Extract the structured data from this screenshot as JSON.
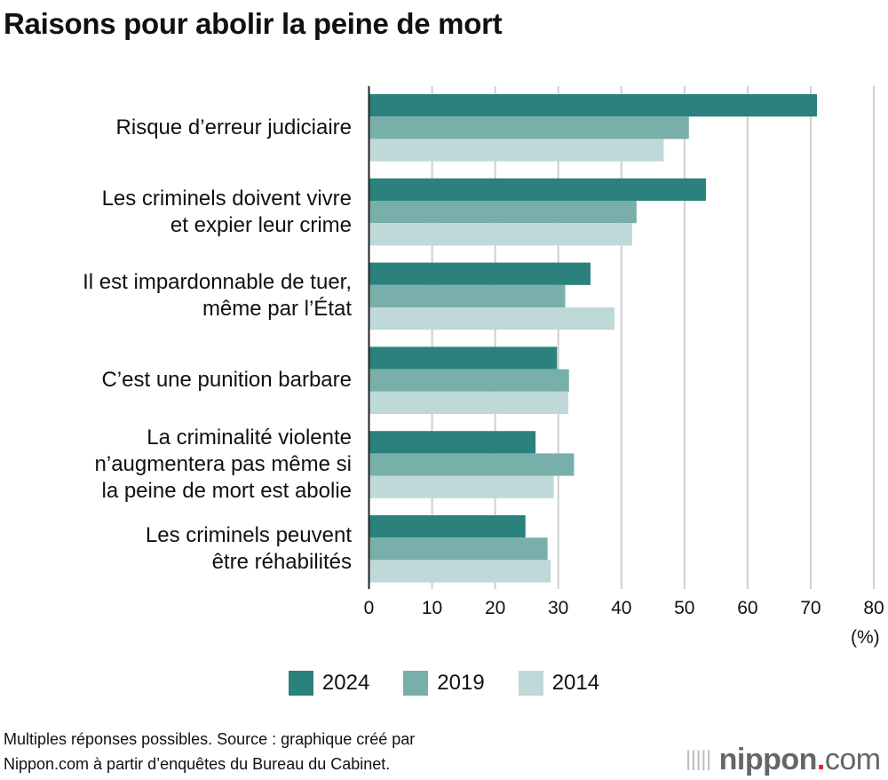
{
  "title": "Raisons pour abolir la peine de mort",
  "chart_data": {
    "type": "bar",
    "orientation": "horizontal",
    "title": "Raisons pour abolir la peine de mort",
    "categories": [
      "Risque d’erreur judiciaire",
      "Les criminels doivent vivre\net expier leur crime",
      "Il est impardonnable de tuer,\nmême par l’État",
      "C’est une punition barbare",
      "La criminalité violente\nn’augmentera pas même si\nla peine de mort est abolie",
      "Les criminels peuvent\nêtre réhabilités"
    ],
    "series": [
      {
        "name": "2024",
        "color": "#2b817c",
        "values": [
          71.0,
          53.4,
          35.1,
          29.8,
          26.4,
          24.8
        ]
      },
      {
        "name": "2019",
        "color": "#78afab",
        "values": [
          50.7,
          42.4,
          31.1,
          31.7,
          32.5,
          28.3
        ]
      },
      {
        "name": "2014",
        "color": "#bfd9d8",
        "values": [
          46.7,
          41.7,
          38.9,
          31.6,
          29.3,
          28.8
        ]
      }
    ],
    "xlim": [
      0,
      80
    ],
    "xticks": [
      "0",
      "10",
      "20",
      "30",
      "40",
      "50",
      "60",
      "70",
      "80"
    ],
    "xunit": "(%)",
    "grid": true,
    "legend": "bottom"
  },
  "footer": {
    "line1": "Multiples réponses possibles. Source : graphique créé par",
    "line2": "Nippon.com à partir d’enquêtes du Bureau du Cabinet."
  },
  "logo": {
    "name": "nippon",
    "dot": ".",
    "suffix": "com"
  }
}
